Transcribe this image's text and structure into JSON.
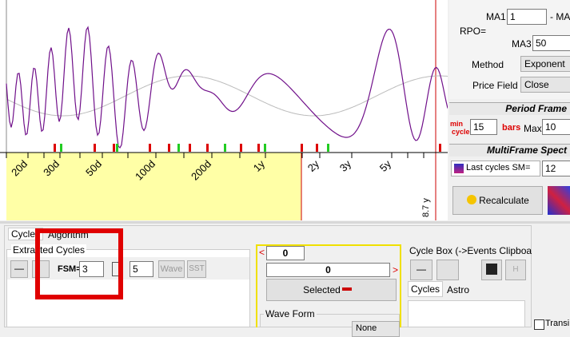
{
  "plot": {
    "axis_labels": [
      "20d",
      "30d",
      "50d",
      "100d",
      "200d",
      "1y",
      "2y",
      "3y",
      "5y"
    ],
    "edge_label": "8.7 y"
  },
  "settings": {
    "ma1_label": "MA1",
    "ma1_value": "1",
    "ma_dash": "- MA",
    "rpo_label": "RPO=",
    "ma3_label": "MA3",
    "ma3_value": "50",
    "method_label": "Method",
    "method_value": "Exponent",
    "price_field_label": "Price Field",
    "price_field_value": "Close",
    "period_frame_title": "Period Frame",
    "min_label": "min",
    "cycle_label": "cycle",
    "min_value": "15",
    "bars_label": "bars",
    "max_label": "Max",
    "max_value": "10",
    "multiframe_title": "MultiFrame Spect",
    "last_cycles": "Last cycles SM=",
    "sm_value": "12",
    "recalculate": "Recalculate"
  },
  "bottom": {
    "tabs": [
      "Cycles",
      "Algorithm"
    ],
    "extracted_title": "Extracted Cycles",
    "fsm_label": "FSM=",
    "fsm_value": "3",
    "second_value": "5",
    "wave_button": "Wave",
    "sst_button": "SST",
    "left_arrow": "<",
    "right_arrow": ">",
    "offset_value": "0",
    "center_value": "0",
    "selected_button": "Selected",
    "wave_form_title": "Wave Form",
    "wave_form_value": "None",
    "cycle_box_title": "Cycle Box (->Events Clipboa",
    "h_button": "H",
    "box_tabs": [
      "Cycles",
      "Astro"
    ],
    "transit_label": "Transi"
  }
}
